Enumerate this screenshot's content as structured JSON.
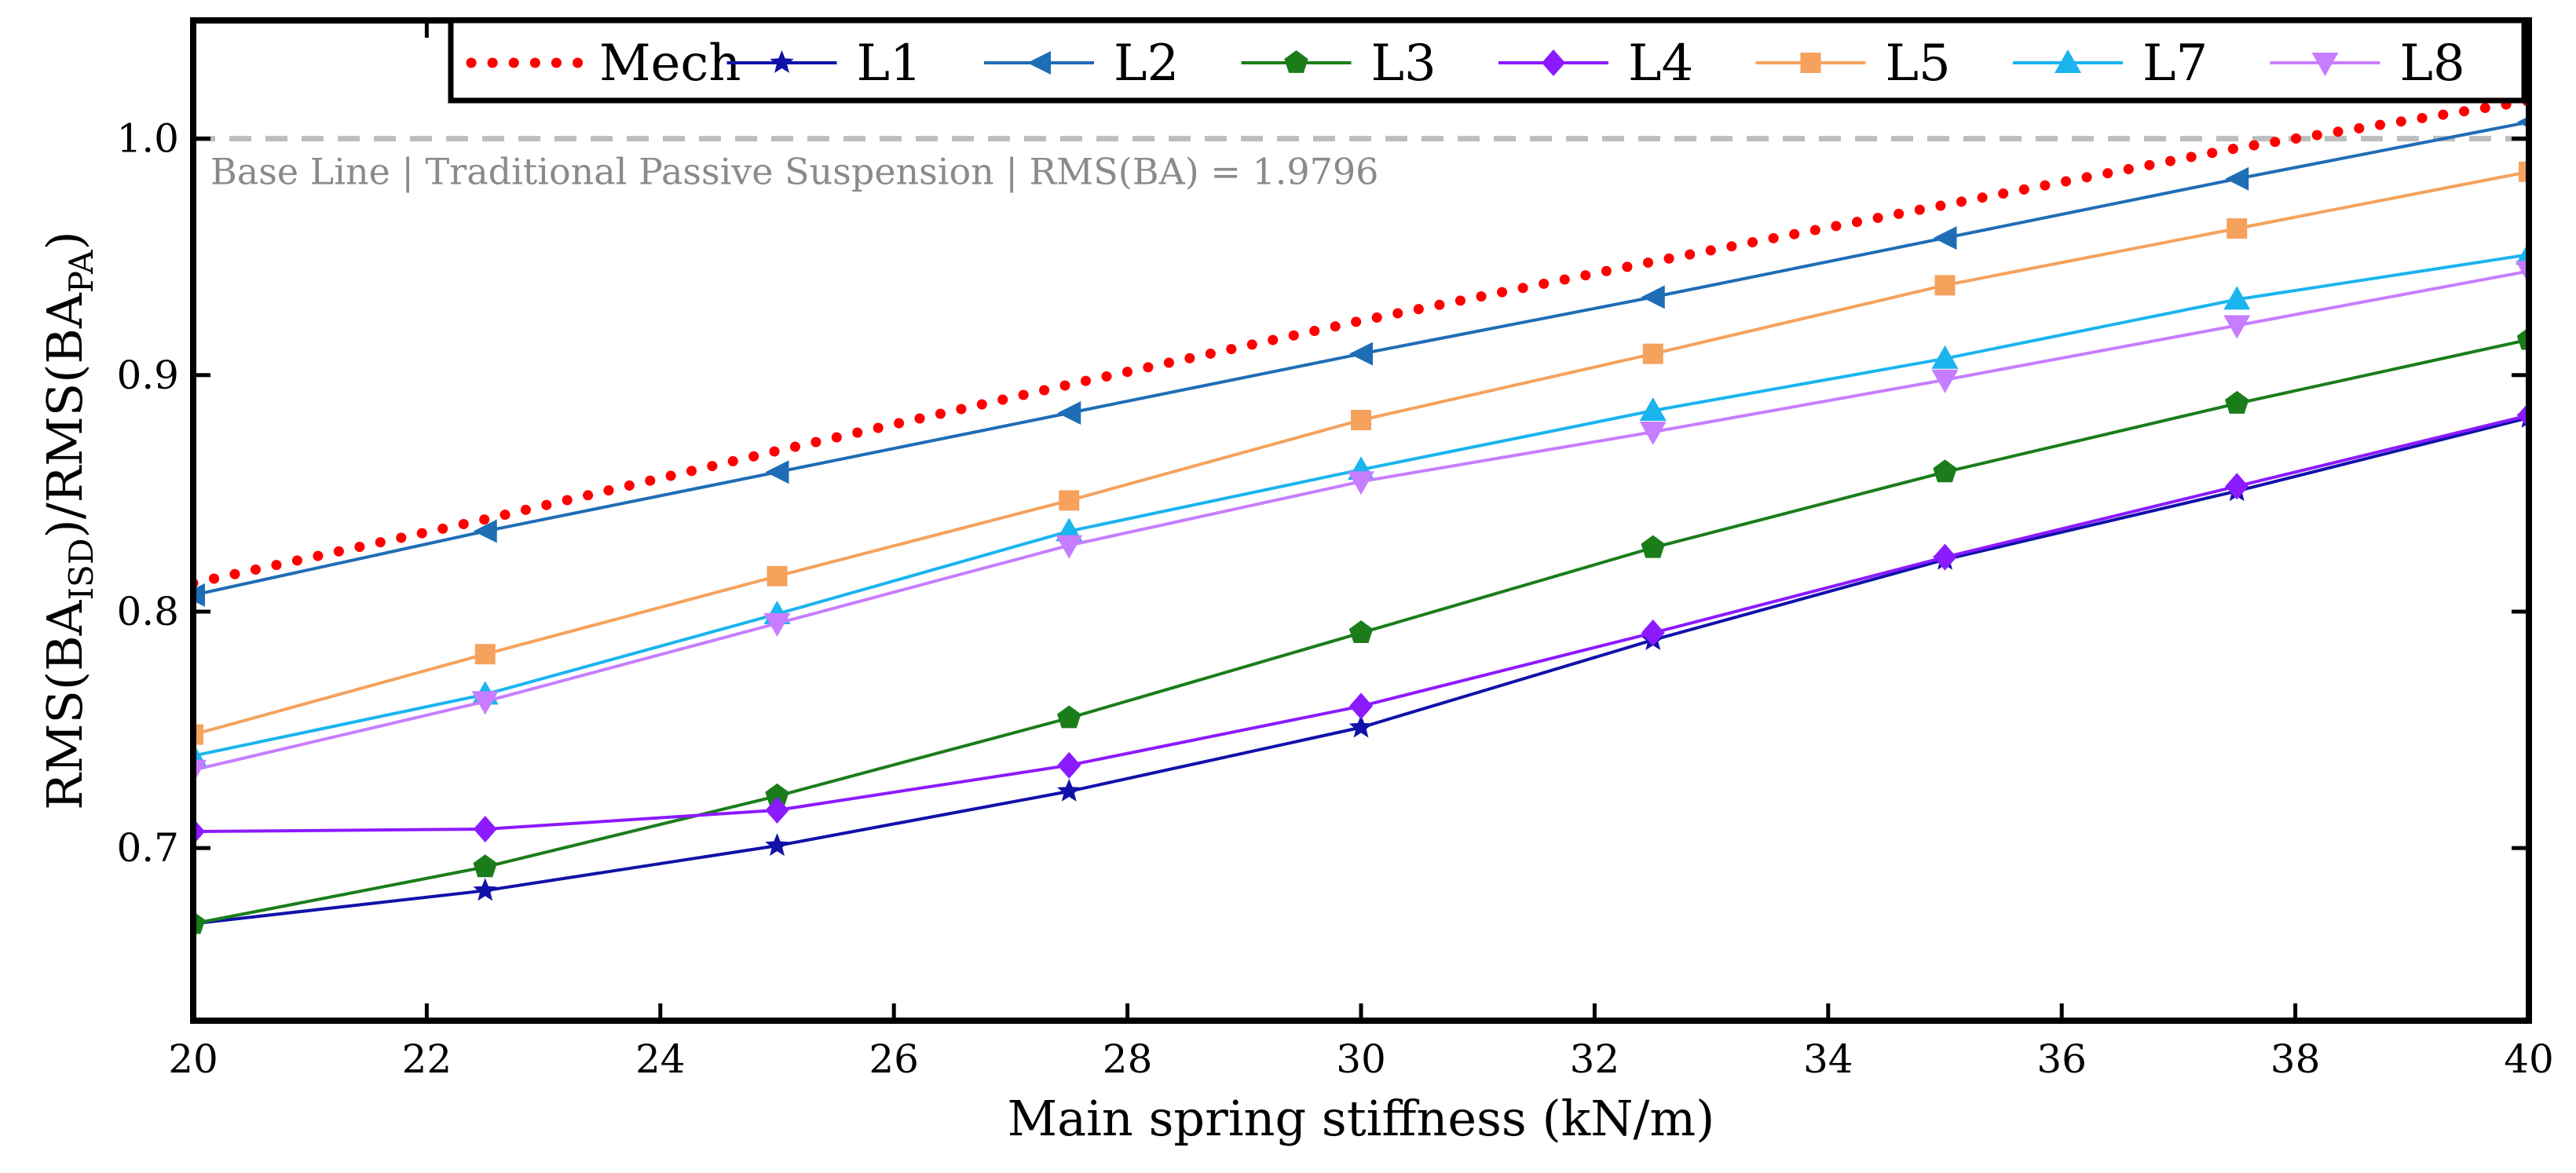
{
  "chart_data": {
    "type": "line",
    "xlabel": "Main spring stiffness (kN/m)",
    "ylabel": {
      "main_before": "RMS(BA",
      "sub_before": "ISD",
      "middle": ")/RMS(BA",
      "sub_after": "PA",
      "end": ")"
    },
    "xlim": [
      20,
      40
    ],
    "ylim": [
      0.627,
      1.05
    ],
    "xticks": [
      20,
      22,
      24,
      26,
      28,
      30,
      32,
      34,
      36,
      38,
      40
    ],
    "xtick_labels": [
      "20",
      "22",
      "24",
      "26",
      "28",
      "30",
      "32",
      "34",
      "36",
      "38",
      "40"
    ],
    "yticks": [
      0.7,
      0.8,
      0.9,
      1.0
    ],
    "ytick_labels": [
      "0.7",
      "0.8",
      "0.9",
      "1.0"
    ],
    "grid": false,
    "legend_position": "top",
    "baseline": {
      "value": 1.0,
      "color": "#bdbdbd",
      "label": "Base Line | Traditional Passive Suspension | RMS(BA) = 1.9796"
    },
    "x": [
      20,
      22.5,
      25,
      27.5,
      30,
      32.5,
      35,
      37.5,
      40
    ],
    "series": [
      {
        "name": "Mech",
        "color": "#ff0000",
        "marker": "dots",
        "values": [
          0.812,
          0.839,
          0.868,
          0.896,
          0.923,
          0.948,
          0.972,
          0.996,
          1.016
        ]
      },
      {
        "name": "L1",
        "color": "#1111aa",
        "marker": "star",
        "values": [
          0.668,
          0.682,
          0.701,
          0.724,
          0.751,
          0.788,
          0.822,
          0.851,
          0.882
        ]
      },
      {
        "name": "L2",
        "color": "#1f6db5",
        "marker": "tri-left",
        "values": [
          0.807,
          0.834,
          0.859,
          0.884,
          0.909,
          0.933,
          0.958,
          0.983,
          1.007
        ]
      },
      {
        "name": "L3",
        "color": "#1a7d1a",
        "marker": "pentagon",
        "values": [
          0.668,
          0.692,
          0.722,
          0.755,
          0.791,
          0.827,
          0.859,
          0.888,
          0.915
        ]
      },
      {
        "name": "L4",
        "color": "#8c1aff",
        "marker": "diamond",
        "values": [
          0.707,
          0.708,
          0.716,
          0.735,
          0.76,
          0.791,
          0.823,
          0.853,
          0.883
        ]
      },
      {
        "name": "L5",
        "color": "#f5a25d",
        "marker": "square",
        "values": [
          0.748,
          0.782,
          0.815,
          0.847,
          0.881,
          0.909,
          0.938,
          0.962,
          0.986
        ]
      },
      {
        "name": "L7",
        "color": "#1ab4ef",
        "marker": "tri-up",
        "values": [
          0.739,
          0.765,
          0.799,
          0.834,
          0.86,
          0.885,
          0.907,
          0.932,
          0.951
        ]
      },
      {
        "name": "L8",
        "color": "#c77dff",
        "marker": "tri-down",
        "values": [
          0.733,
          0.762,
          0.795,
          0.828,
          0.855,
          0.876,
          0.898,
          0.921,
          0.944
        ]
      }
    ]
  }
}
